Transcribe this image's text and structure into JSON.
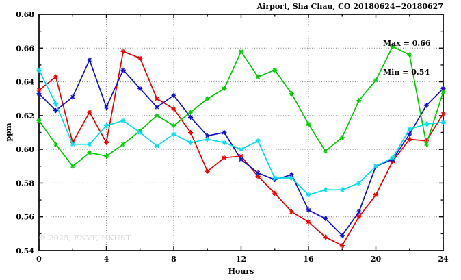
{
  "title": "Airport, Sha Chau, CO 20180624−20180627",
  "annotations": {
    "max_label": "Max = 0.66",
    "min_label": "Min = 0.54"
  },
  "watermark": "© 2025, ENVF, HKUST",
  "chart_data": {
    "type": "line",
    "title": "Airport, Sha Chau, CO 20180624−20180627",
    "xlabel": "Hours",
    "ylabel": "ppm",
    "xlim": [
      0,
      24
    ],
    "ylim": [
      0.54,
      0.68
    ],
    "grid": true,
    "legend_position": "none",
    "marker": "star",
    "x_axis": {
      "label": "Hours",
      "ticks": [
        {
          "v": 0,
          "t": "0"
        },
        {
          "v": 4,
          "t": "4"
        },
        {
          "v": 8,
          "t": "8"
        },
        {
          "v": 12,
          "t": "12"
        },
        {
          "v": 16,
          "t": "16"
        },
        {
          "v": 20,
          "t": "20"
        },
        {
          "v": 24,
          "t": "24"
        }
      ],
      "minor": [
        2,
        6,
        10,
        14,
        18,
        22
      ]
    },
    "y_axis": {
      "label": "ppm",
      "ticks": [
        {
          "v": 0.54,
          "t": "0.54"
        },
        {
          "v": 0.56,
          "t": "0.56"
        },
        {
          "v": 0.58,
          "t": "0.58"
        },
        {
          "v": 0.6,
          "t": "0.60"
        },
        {
          "v": 0.62,
          "t": "0.62"
        },
        {
          "v": 0.64,
          "t": "0.64"
        },
        {
          "v": 0.66,
          "t": "0.66"
        },
        {
          "v": 0.68,
          "t": "0.68"
        }
      ],
      "minor": [
        0.55,
        0.57,
        0.59,
        0.61,
        0.63,
        0.65,
        0.67
      ]
    },
    "x": [
      0,
      1,
      2,
      3,
      4,
      5,
      6,
      7,
      8,
      9,
      10,
      11,
      12,
      13,
      14,
      15,
      16,
      17,
      18,
      19,
      20,
      21,
      22,
      23,
      24
    ],
    "series": [
      {
        "name": "red-series",
        "color": "#ec0000",
        "values": [
          0.635,
          0.643,
          0.604,
          0.622,
          0.604,
          0.658,
          0.654,
          0.63,
          0.624,
          0.61,
          0.587,
          0.595,
          0.596,
          0.584,
          0.574,
          0.563,
          0.557,
          0.548,
          0.543,
          0.56,
          0.573,
          0.593,
          0.606,
          0.605,
          0.621
        ]
      },
      {
        "name": "blue-series",
        "color": "#1010cd",
        "values": [
          0.633,
          0.623,
          0.631,
          0.653,
          0.625,
          0.647,
          0.636,
          0.625,
          0.632,
          0.619,
          0.608,
          0.61,
          0.594,
          0.586,
          0.582,
          0.585,
          0.564,
          0.559,
          0.549,
          0.563,
          0.59,
          0.594,
          0.609,
          0.626,
          0.636
        ]
      },
      {
        "name": "green-series",
        "color": "#00cc00",
        "values": [
          0.617,
          0.603,
          0.59,
          0.598,
          0.596,
          0.603,
          0.611,
          0.62,
          0.614,
          0.622,
          0.63,
          0.636,
          0.658,
          0.643,
          0.647,
          0.633,
          0.615,
          0.599,
          0.607,
          0.629,
          0.641,
          0.661,
          0.656,
          0.603,
          0.634
        ]
      },
      {
        "name": "cyan-series",
        "color": "#00e0e8",
        "values": [
          0.647,
          0.627,
          0.603,
          0.603,
          0.614,
          0.617,
          0.61,
          0.602,
          0.609,
          0.604,
          0.606,
          0.604,
          0.6,
          0.605,
          0.583,
          0.583,
          0.573,
          0.576,
          0.576,
          0.58,
          0.59,
          0.595,
          0.612,
          0.615,
          0.616
        ]
      }
    ],
    "stats_box": {
      "max": 0.66,
      "min": 0.54
    }
  }
}
